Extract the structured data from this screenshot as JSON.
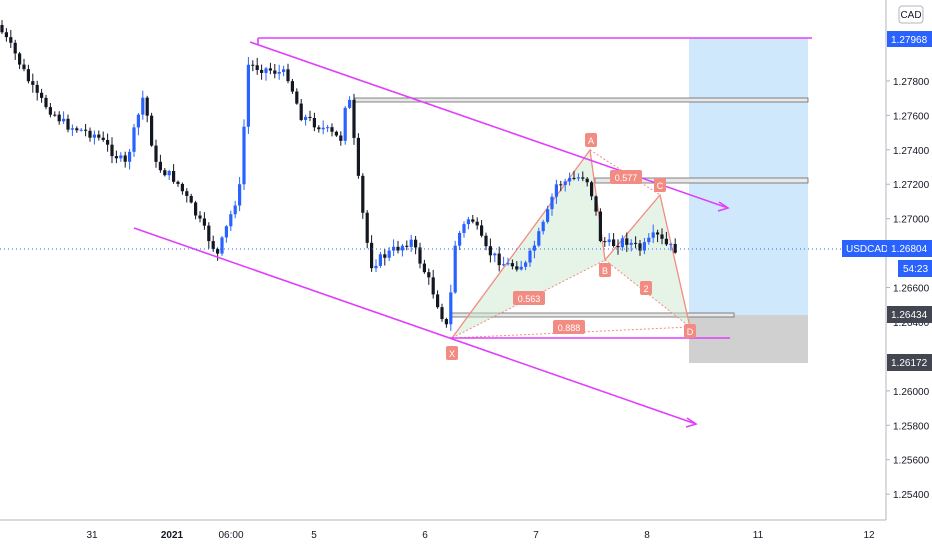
{
  "symbol": "USDCAD",
  "currency": "CAD",
  "current_price": "1.26804",
  "countdown": "54:23",
  "target_price": "1.27968",
  "entry_price": "1.26434",
  "stop_price": "1.26172",
  "price_axis": {
    "ticks": [
      "1.27800",
      "1.27600",
      "1.27400",
      "1.27200",
      "1.27000",
      "1.26600",
      "1.26400",
      "1.26000",
      "1.25800",
      "1.25600",
      "1.25400"
    ],
    "range": [
      1.2525,
      1.2827
    ]
  },
  "time_axis": {
    "labels": [
      "31",
      "2021",
      "06:00",
      "5",
      "6",
      "7",
      "8",
      "11",
      "12"
    ]
  },
  "pattern_points": [
    "X",
    "A",
    "B",
    "C",
    "D"
  ],
  "pattern_labels": [
    "0.563",
    "0.577",
    "0.888",
    "2"
  ],
  "colors": {
    "bull": "#2962ff",
    "bear": "#131722",
    "trendline": "#e040fb",
    "pattern": "#f28b82",
    "target_zone": "#bbdefb",
    "stop_zone": "#c8c8c8",
    "price_tag": "#2962ff"
  },
  "chart_data": {
    "type": "candlestick",
    "series_seed": 7,
    "y_axis": [
      1.2525,
      1.2827
    ],
    "x_labels": [
      "31",
      "2021",
      "06:00",
      "5",
      "6",
      "7",
      "8",
      "11",
      "12"
    ]
  }
}
